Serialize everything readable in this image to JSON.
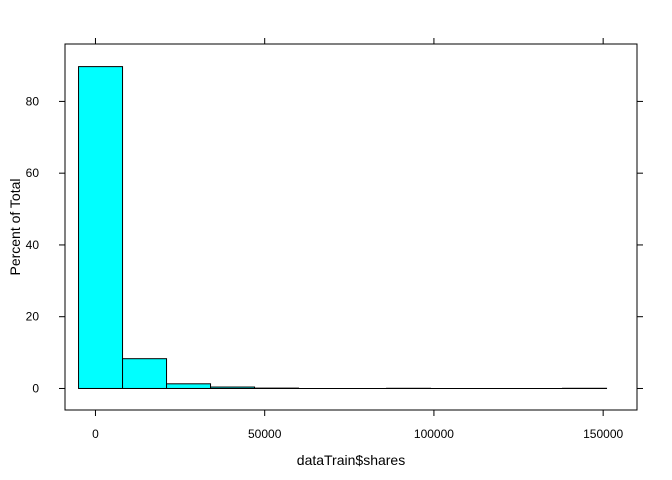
{
  "chart_data": {
    "type": "bar",
    "subtype": "histogram",
    "xlabel": "dataTrain$shares",
    "ylabel": "Percent of Total",
    "xlim": [
      -9000,
      160000
    ],
    "ylim": [
      -6,
      96
    ],
    "x_ticks": [
      0,
      50000,
      100000,
      150000
    ],
    "x_tick_labels": [
      "0",
      "50000",
      "100000",
      "150000"
    ],
    "y_ticks": [
      0,
      20,
      40,
      60,
      80
    ],
    "y_tick_labels": [
      "0",
      "20",
      "40",
      "60",
      "80"
    ],
    "bin_edges": [
      -5000,
      8000,
      21000,
      34000,
      47000,
      60000,
      73000,
      86000,
      99000,
      112000,
      125000,
      138000,
      151000
    ],
    "bins": [
      {
        "x0": -5000,
        "x1": 8000,
        "percent": 89.7
      },
      {
        "x0": 8000,
        "x1": 21000,
        "percent": 8.3
      },
      {
        "x0": 21000,
        "x1": 34000,
        "percent": 1.3
      },
      {
        "x0": 34000,
        "x1": 47000,
        "percent": 0.4
      },
      {
        "x0": 47000,
        "x1": 60000,
        "percent": 0.1
      },
      {
        "x0": 60000,
        "x1": 73000,
        "percent": 0.0
      },
      {
        "x0": 73000,
        "x1": 86000,
        "percent": 0.0
      },
      {
        "x0": 86000,
        "x1": 99000,
        "percent": 0.05
      },
      {
        "x0": 99000,
        "x1": 112000,
        "percent": 0.0
      },
      {
        "x0": 112000,
        "x1": 125000,
        "percent": 0.0
      },
      {
        "x0": 125000,
        "x1": 138000,
        "percent": 0.0
      },
      {
        "x0": 138000,
        "x1": 151000,
        "percent": 0.05
      }
    ],
    "bar_fill": "#00FFFF",
    "bar_stroke": "#000000",
    "grid": false,
    "legend": "none"
  }
}
